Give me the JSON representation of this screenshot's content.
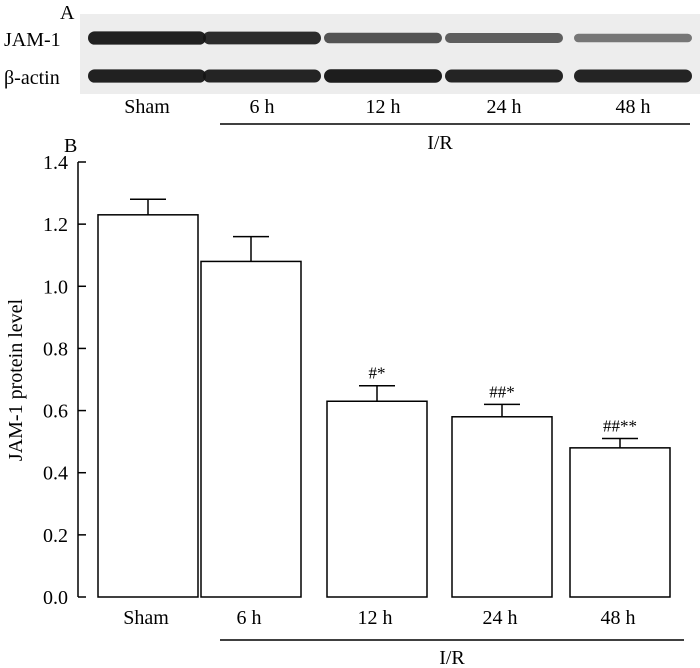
{
  "panel_a": {
    "label": "A",
    "rows": [
      "JAM-1",
      "β-actin"
    ],
    "lanes": [
      "Sham",
      "6 h",
      "12 h",
      "24 h",
      "48 h"
    ],
    "group_label": "I/R",
    "band_intensity": {
      "JAM-1": [
        0.92,
        0.85,
        0.62,
        0.55,
        0.4
      ],
      "β-actin": [
        0.92,
        0.9,
        0.95,
        0.9,
        0.9
      ]
    }
  },
  "panel_b": {
    "label": "B",
    "group_label": "I/R"
  },
  "colors": {
    "ink": "#000000",
    "bar_fill": "#ffffff",
    "blot_bg": "#ededed",
    "band": "#141414"
  },
  "chart_data": {
    "type": "bar",
    "categories": [
      "Sham",
      "6 h",
      "12 h",
      "24 h",
      "48 h"
    ],
    "values": [
      1.23,
      1.08,
      0.63,
      0.58,
      0.48
    ],
    "errors": [
      0.05,
      0.08,
      0.05,
      0.04,
      0.03
    ],
    "annotations": [
      "",
      "",
      "#*",
      "##*",
      "##**"
    ],
    "ylabel": "JAM-1 protein level",
    "xlabel": "",
    "ylim": [
      0,
      1.4
    ],
    "yticks": [
      "0.0",
      "0.2",
      "0.4",
      "0.6",
      "0.8",
      "1.0",
      "1.2",
      "1.4"
    ],
    "grid": false,
    "legend": "none"
  }
}
